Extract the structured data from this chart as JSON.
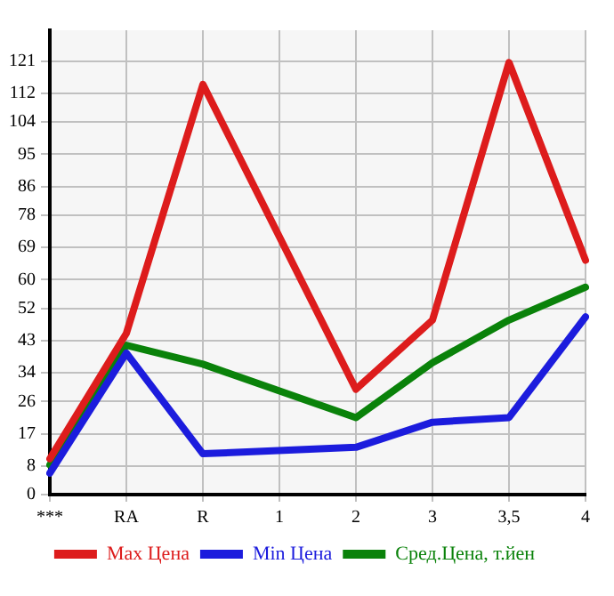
{
  "chart_data": {
    "type": "line",
    "categories": [
      "***",
      "RA",
      "R",
      "1",
      "2",
      "3",
      "3,5",
      "4"
    ],
    "series": [
      {
        "name": "Max Цена",
        "color": "#dd1c1c",
        "values": [
          10,
          45,
          114.5,
          null,
          29.4,
          48.7,
          120.6,
          65.4
        ]
      },
      {
        "name": "Min Цена",
        "color": "#1c1cdd",
        "values": [
          6,
          39.5,
          11.4,
          null,
          13.2,
          20.2,
          21.5,
          49.6
        ]
      },
      {
        "name": "Сред.Цена, т.йен",
        "color": "#0a820a",
        "values": [
          8.3,
          41.7,
          36.4,
          null,
          21.5,
          36.8,
          48.7,
          57.9
        ]
      }
    ],
    "ylim": [
      0,
      129.6
    ],
    "yticks": [
      0,
      8,
      17,
      26,
      34,
      43,
      52,
      60,
      69,
      78,
      86,
      95,
      104,
      112,
      121
    ],
    "grid": true,
    "legend": "bottom",
    "marker": "none",
    "line_style": "solid"
  }
}
